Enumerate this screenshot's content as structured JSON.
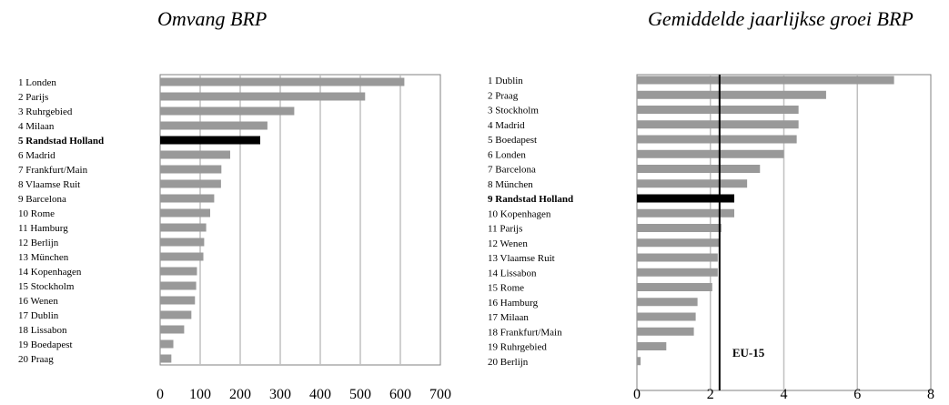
{
  "chart_data": [
    {
      "type": "bar",
      "orientation": "horizontal",
      "title": "Omvang BRP",
      "categories": [
        "1 Londen",
        "2 Parijs",
        "3 Ruhrgebied",
        "4 Milaan",
        "5 Randstad Holland",
        "6 Madrid",
        "7 Frankfurt/Main",
        "8 Vlaamse Ruit",
        "9 Barcelona",
        "10 Rome",
        "11 Hamburg",
        "12 Berlijn",
        "13 München",
        "14 Kopenhagen",
        "15 Stockholm",
        "16 Wenen",
        "17 Dublin",
        "18 Lissabon",
        "19 Boedapest",
        "20 Praag"
      ],
      "values": [
        610,
        512,
        335,
        268,
        250,
        175,
        153,
        152,
        135,
        125,
        115,
        110,
        108,
        92,
        90,
        87,
        78,
        60,
        33,
        28
      ],
      "highlight_index": 4,
      "xlim": [
        0,
        700
      ],
      "xticks": [
        0,
        100,
        200,
        300,
        400,
        500,
        600,
        700
      ],
      "grid": "vertical",
      "bar_color": "#999999",
      "highlight_color": "#000000"
    },
    {
      "type": "bar",
      "orientation": "horizontal",
      "title": "Gemiddelde jaarlijkse groei BRP",
      "categories": [
        "1 Dublin",
        "2 Praag",
        "3 Stockholm",
        "4 Madrid",
        "5 Boedapest",
        "6 Londen",
        "7 Barcelona",
        "8 München",
        "9 Randstad Holland",
        "10 Kopenhagen",
        "11 Parijs",
        "12 Wenen",
        "13 Vlaamse Ruit",
        "14 Lissabon",
        "15 Rome",
        "16 Hamburg",
        "17 Milaan",
        "18 Frankfurt/Main",
        "19 Ruhrgebied",
        "20 Berlijn"
      ],
      "values": [
        7.0,
        5.15,
        4.4,
        4.4,
        4.35,
        4.0,
        3.35,
        3.0,
        2.65,
        2.65,
        2.3,
        2.25,
        2.2,
        2.2,
        2.05,
        1.65,
        1.6,
        1.55,
        0.8,
        0.1
      ],
      "highlight_index": 8,
      "xlim": [
        0,
        8
      ],
      "xticks": [
        0,
        2,
        4,
        6,
        8
      ],
      "grid": "vertical",
      "reference_line": {
        "value": 2.25,
        "label": "EU-15"
      },
      "bar_color": "#999999",
      "highlight_color": "#000000"
    }
  ]
}
